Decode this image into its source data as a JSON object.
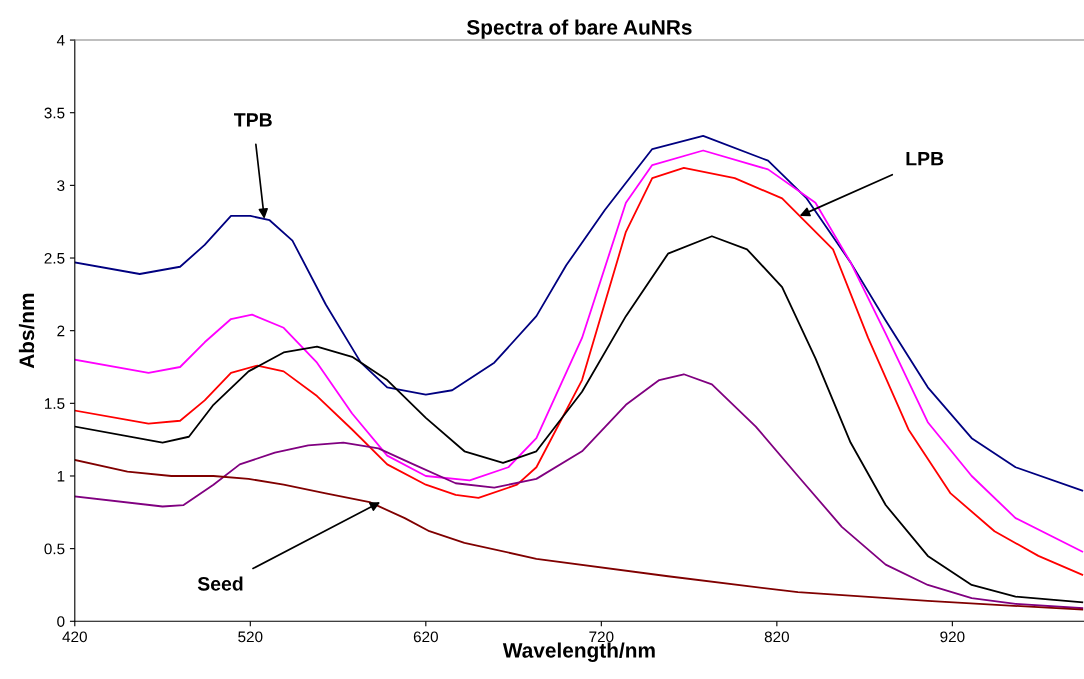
{
  "chart_data": {
    "type": "line",
    "title": "Spectra of bare AuNRs",
    "xlabel": "Wavelength/nm",
    "ylabel": "Abs/nm",
    "xlim": [
      420,
      995
    ],
    "xticks": [
      420,
      520,
      620,
      720,
      820,
      920
    ],
    "ylim": [
      0,
      4
    ],
    "yticks": [
      0,
      0.5,
      1,
      1.5,
      2,
      2.5,
      3,
      3.5,
      4
    ],
    "grid": false,
    "legend": false,
    "marker": "none",
    "line_style": "solid",
    "series": [
      {
        "color": "#000080",
        "x": [
          420,
          457,
          480,
          494,
          509,
          520,
          531,
          544,
          563,
          583,
          598,
          620,
          635,
          659,
          683,
          700,
          722,
          749,
          778,
          815,
          837,
          862,
          882,
          906,
          931,
          956,
          994
        ],
        "values": [
          2.47,
          2.39,
          2.44,
          2.59,
          2.79,
          2.79,
          2.76,
          2.62,
          2.18,
          1.78,
          1.61,
          1.56,
          1.59,
          1.78,
          2.1,
          2.45,
          2.83,
          3.25,
          3.34,
          3.17,
          2.91,
          2.47,
          2.07,
          1.61,
          1.26,
          1.06,
          0.9
        ]
      },
      {
        "color": "#ff00ff",
        "x": [
          420,
          462,
          480,
          494,
          509,
          521,
          539,
          558,
          578,
          598,
          620,
          645,
          667,
          683,
          709,
          734,
          749,
          778,
          815,
          842,
          862,
          882,
          906,
          931,
          956,
          994
        ],
        "values": [
          1.8,
          1.71,
          1.75,
          1.92,
          2.08,
          2.11,
          2.02,
          1.78,
          1.43,
          1.14,
          1.0,
          0.97,
          1.06,
          1.26,
          1.95,
          2.88,
          3.14,
          3.24,
          3.11,
          2.88,
          2.47,
          1.98,
          1.37,
          1.0,
          0.71,
          0.48
        ]
      },
      {
        "color": "#ff0000",
        "x": [
          420,
          462,
          480,
          494,
          509,
          524,
          539,
          558,
          578,
          598,
          620,
          637,
          650,
          672,
          683,
          709,
          734,
          749,
          767,
          796,
          823,
          852,
          872,
          895,
          919,
          944,
          969,
          994
        ],
        "values": [
          1.45,
          1.36,
          1.38,
          1.52,
          1.71,
          1.76,
          1.72,
          1.55,
          1.32,
          1.08,
          0.94,
          0.87,
          0.85,
          0.94,
          1.06,
          1.66,
          2.68,
          3.05,
          3.12,
          3.05,
          2.91,
          2.56,
          1.95,
          1.32,
          0.88,
          0.62,
          0.45,
          0.32
        ]
      },
      {
        "color": "#000000",
        "x": [
          420,
          470,
          485,
          499,
          519,
          539,
          558,
          578,
          598,
          620,
          642,
          664,
          683,
          709,
          734,
          758,
          783,
          803,
          823,
          842,
          862,
          882,
          906,
          931,
          956,
          994
        ],
        "values": [
          1.34,
          1.23,
          1.27,
          1.49,
          1.72,
          1.85,
          1.89,
          1.82,
          1.66,
          1.4,
          1.17,
          1.09,
          1.17,
          1.58,
          2.1,
          2.53,
          2.65,
          2.56,
          2.3,
          1.81,
          1.23,
          0.8,
          0.45,
          0.25,
          0.17,
          0.13
        ]
      },
      {
        "color": "#800080",
        "x": [
          420,
          470,
          482,
          499,
          514,
          534,
          553,
          573,
          593,
          613,
          637,
          659,
          683,
          709,
          734,
          753,
          767,
          783,
          808,
          832,
          857,
          882,
          906,
          931,
          956,
          994
        ],
        "values": [
          0.86,
          0.79,
          0.8,
          0.94,
          1.08,
          1.16,
          1.21,
          1.23,
          1.19,
          1.08,
          0.95,
          0.92,
          0.98,
          1.17,
          1.49,
          1.66,
          1.7,
          1.63,
          1.34,
          1.0,
          0.65,
          0.39,
          0.25,
          0.16,
          0.12,
          0.09
        ]
      },
      {
        "color": "#800000",
        "x": [
          420,
          450,
          475,
          499,
          519,
          539,
          563,
          588,
          608,
          622,
          642,
          683,
          758,
          832,
          906,
          994
        ],
        "values": [
          1.11,
          1.03,
          1.0,
          1.0,
          0.98,
          0.94,
          0.88,
          0.82,
          0.71,
          0.62,
          0.54,
          0.43,
          0.31,
          0.2,
          0.14,
          0.08
        ]
      }
    ],
    "annotations": [
      {
        "text": "TPB",
        "x": 528,
        "y": 2.77
      },
      {
        "text": "LPB",
        "x": 833,
        "y": 2.79
      },
      {
        "text": "Seed",
        "x": 594,
        "y": 0.82
      }
    ]
  }
}
